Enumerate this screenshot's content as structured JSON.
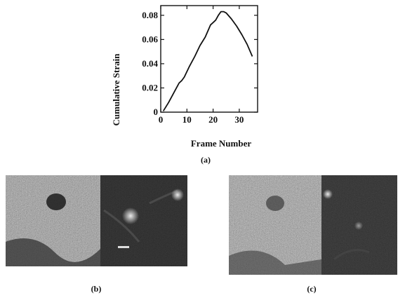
{
  "chart_data": {
    "type": "line",
    "title": "",
    "xlabel": "Frame Number",
    "ylabel": "Cumulative Strain",
    "xlim": [
      0,
      37
    ],
    "ylim": [
      0,
      0.088
    ],
    "xticks": [
      "0",
      "10",
      "20",
      "30"
    ],
    "xtick_values": [
      0,
      10,
      20,
      30
    ],
    "yticks": [
      "0",
      "0.02",
      "0.04",
      "0.06",
      "0.08"
    ],
    "ytick_values": [
      0,
      0.02,
      0.04,
      0.06,
      0.08
    ],
    "grid": false,
    "legend": "none",
    "x": [
      1,
      3,
      5,
      7,
      8,
      9,
      11,
      13,
      15,
      17,
      19,
      20,
      21,
      22,
      23,
      24,
      25,
      27,
      29,
      31,
      33,
      35
    ],
    "y": [
      0.001,
      0.008,
      0.016,
      0.024,
      0.026,
      0.029,
      0.038,
      0.046,
      0.055,
      0.062,
      0.072,
      0.074,
      0.076,
      0.08,
      0.083,
      0.083,
      0.082,
      0.077,
      0.071,
      0.064,
      0.056,
      0.046
    ]
  },
  "captions": {
    "a": "(a)",
    "b": "(b)",
    "c": "(c)"
  },
  "colors": {
    "line": "#111111",
    "axes": "#111111",
    "background": "#ffffff"
  }
}
